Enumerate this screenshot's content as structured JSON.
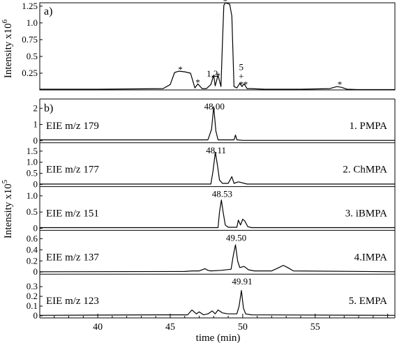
{
  "chart_data": [
    {
      "type": "line",
      "panel_label": "a)",
      "ylabel": "Intensity x10",
      "ylabel_exponent": "6",
      "ylim": [
        0,
        1.3
      ],
      "yticks": [
        "0.25",
        "0.5",
        "0.75",
        "1.0",
        "1.25"
      ],
      "xlim": [
        36,
        60.5
      ],
      "series": [
        {
          "x": [
            36,
            40,
            44.5,
            45,
            45.3,
            45.6,
            46,
            46.4,
            46.7,
            46.9,
            47.2,
            47.5,
            47.8,
            48,
            48.1,
            48.3,
            48.5,
            48.6,
            48.7,
            48.8,
            49.1,
            49.25,
            49.4,
            49.6,
            49.8,
            49.95,
            50.1,
            50.3,
            50.6,
            51.5,
            54,
            56,
            56.5,
            56.8,
            57.2,
            58,
            60.5
          ],
          "y": [
            0.01,
            0.01,
            0.02,
            0.08,
            0.26,
            0.28,
            0.27,
            0.25,
            0.03,
            0.09,
            0.02,
            0.02,
            0.08,
            0.22,
            0.06,
            0.22,
            0.05,
            0.7,
            1.26,
            1.3,
            1.28,
            1.1,
            0.05,
            0.03,
            0.1,
            0.05,
            0.09,
            0.02,
            0.02,
            0.01,
            0.01,
            0.02,
            0.05,
            0.04,
            0.01,
            0.005,
            0.005
          ]
        }
      ],
      "annotations": [
        {
          "text": "*",
          "x": 45.7,
          "y": 0.29
        },
        {
          "text": "*",
          "x": 46.9,
          "y": 0.1
        },
        {
          "text": "1,2",
          "x": 47.9,
          "y": 0.23
        },
        {
          "text": "*",
          "x": 48.3,
          "y": 0.2
        },
        {
          "text": "*",
          "x": 48.8,
          "y": 1.31
        },
        {
          "text": "5",
          "x": 49.9,
          "y": 0.33
        },
        {
          "text": "+",
          "x": 49.9,
          "y": 0.19
        },
        {
          "text": "*",
          "x": 49.9,
          "y": 0.07
        },
        {
          "text": "*",
          "x": 50.2,
          "y": 0.07
        },
        {
          "text": "*",
          "x": 56.7,
          "y": 0.07
        }
      ]
    },
    {
      "type": "line",
      "panel_label": "b)",
      "ylabel": "Intensity x10",
      "ylabel_exponent": "5",
      "xlabel": "time (min)",
      "xlim": [
        36,
        60.5
      ],
      "xticks": [
        40,
        45,
        50,
        55
      ],
      "panels": [
        {
          "label": "EIE m/z 179",
          "compound": "1. PMPA",
          "peak_label": "48.00",
          "ylim": [
            0,
            2.4
          ],
          "yticks": [
            "0",
            "1",
            "2"
          ],
          "x": [
            36,
            47.6,
            47.85,
            48.0,
            48.15,
            48.3,
            49.4,
            49.5,
            49.6,
            50,
            60.5
          ],
          "y": [
            0.05,
            0.05,
            0.7,
            2.1,
            0.6,
            0.05,
            0.05,
            0.35,
            0.05,
            0.02,
            0.02
          ]
        },
        {
          "label": "EIE m/z 177",
          "compound": "2. ChMPA",
          "peak_label": "48.11",
          "ylim": [
            0,
            1.75
          ],
          "yticks": [
            "0",
            "0.5",
            "1.0",
            "1.5"
          ],
          "x": [
            36,
            47.8,
            47.95,
            48.11,
            48.25,
            48.4,
            48.6,
            49.0,
            49.25,
            49.4,
            49.7,
            50.3,
            60.5
          ],
          "y": [
            0.02,
            0.02,
            0.6,
            1.45,
            0.9,
            0.2,
            0.05,
            0.05,
            0.35,
            0.05,
            0.12,
            0.02,
            0.02
          ]
        },
        {
          "label": "EIE m/z 151",
          "compound": "3. iBMPA",
          "peak_label": "48.53",
          "ylim": [
            0,
            1.2
          ],
          "yticks": [
            "0",
            "0.5",
            "1.0"
          ],
          "x": [
            36,
            48.3,
            48.4,
            48.53,
            48.65,
            48.8,
            49.0,
            49.6,
            49.7,
            49.85,
            50.0,
            50.15,
            50.35,
            50.6,
            60.5
          ],
          "y": [
            0.02,
            0.02,
            0.5,
            0.87,
            0.5,
            0.1,
            0.03,
            0.03,
            0.25,
            0.1,
            0.28,
            0.22,
            0.05,
            0.02,
            0.02
          ]
        },
        {
          "label": "EIE m/z 137",
          "compound": "4.IMPA",
          "peak_label": "49.50",
          "ylim": [
            0,
            0.7
          ],
          "yticks": [
            "0",
            "0.2",
            "0.4",
            "0.6"
          ],
          "x": [
            36,
            46.0,
            46.5,
            47.0,
            47.4,
            47.6,
            47.8,
            48.5,
            49.2,
            49.35,
            49.5,
            49.65,
            49.8,
            50.1,
            50.4,
            50.8,
            52.0,
            52.5,
            52.8,
            53.1,
            53.5,
            60.5
          ],
          "y": [
            0.005,
            0.01,
            0.02,
            0.02,
            0.06,
            0.03,
            0.02,
            0.03,
            0.05,
            0.3,
            0.49,
            0.2,
            0.08,
            0.1,
            0.04,
            0.02,
            0.02,
            0.08,
            0.12,
            0.08,
            0.02,
            0.005
          ]
        },
        {
          "label": "EIE m/z 123",
          "compound": "5. EMPA",
          "peak_label": "49.91",
          "ylim": [
            0,
            0.4
          ],
          "yticks": [
            "0",
            "0.1",
            "0.2",
            "0.3"
          ],
          "x": [
            36,
            44.0,
            46.2,
            46.5,
            46.8,
            47.0,
            47.3,
            47.6,
            47.9,
            48.1,
            48.3,
            48.6,
            49.0,
            49.6,
            49.75,
            49.91,
            50.05,
            50.2,
            50.6,
            60.5
          ],
          "y": [
            0.005,
            0.01,
            0.01,
            0.06,
            0.02,
            0.04,
            0.01,
            0.02,
            0.05,
            0.02,
            0.06,
            0.03,
            0.02,
            0.02,
            0.1,
            0.26,
            0.08,
            0.02,
            0.01,
            0.005
          ]
        }
      ]
    }
  ]
}
